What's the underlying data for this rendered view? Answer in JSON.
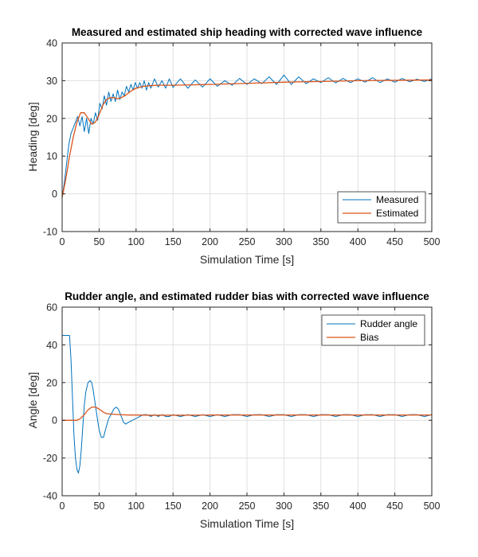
{
  "chart_data": [
    {
      "type": "line",
      "title": "Measured and estimated ship heading with corrected wave influence",
      "xlabel": "Simulation Time [s]",
      "ylabel": "Heading [deg]",
      "xlim": [
        0,
        500
      ],
      "ylim": [
        -10,
        40
      ],
      "xticks": [
        0,
        50,
        100,
        150,
        200,
        250,
        300,
        350,
        400,
        450,
        500
      ],
      "yticks": [
        -10,
        0,
        10,
        20,
        30,
        40
      ],
      "grid": true,
      "legend_position": "bottom-right",
      "series": [
        {
          "name": "Measured",
          "color": "#0072BD",
          "x": [
            0,
            3,
            6,
            9,
            12,
            15,
            18,
            21,
            24,
            27,
            30,
            33,
            36,
            39,
            42,
            45,
            48,
            51,
            54,
            57,
            60,
            63,
            66,
            69,
            72,
            75,
            78,
            81,
            84,
            87,
            90,
            93,
            96,
            99,
            102,
            105,
            108,
            111,
            114,
            117,
            120,
            125,
            130,
            135,
            140,
            145,
            150,
            160,
            170,
            180,
            190,
            200,
            210,
            220,
            230,
            240,
            250,
            260,
            270,
            280,
            290,
            300,
            310,
            320,
            330,
            340,
            350,
            360,
            370,
            380,
            390,
            400,
            410,
            420,
            430,
            440,
            450,
            460,
            470,
            480,
            490,
            500
          ],
          "values": [
            -1,
            3,
            8,
            13,
            16,
            17.5,
            19,
            20.5,
            18,
            20.5,
            16.5,
            20,
            16,
            20,
            18.5,
            21.5,
            19.5,
            24,
            22.5,
            26,
            23.5,
            27,
            24.5,
            26.5,
            24.5,
            27.5,
            25,
            27,
            26,
            28.5,
            27,
            29,
            27.5,
            29.5,
            28,
            29.5,
            28,
            30,
            27.5,
            29.5,
            28,
            30.5,
            28.3,
            30,
            28,
            30.5,
            28.2,
            30.5,
            28,
            30.2,
            28.3,
            30.5,
            28.5,
            30,
            28.8,
            30.6,
            29,
            30.5,
            29.2,
            31,
            29,
            31.5,
            29,
            31,
            29.2,
            30.5,
            29.5,
            30.8,
            29.4,
            30.6,
            29.5,
            30.5,
            29.6,
            30.8,
            29.5,
            30.5,
            29.6,
            30.6,
            29.7,
            30.4,
            29.8,
            30.5
          ]
        },
        {
          "name": "Estimated",
          "color": "#D95319",
          "x": [
            0,
            5,
            10,
            15,
            20,
            25,
            30,
            35,
            40,
            45,
            50,
            55,
            60,
            65,
            70,
            75,
            80,
            85,
            90,
            95,
            100,
            110,
            120,
            130,
            140,
            150,
            175,
            200,
            250,
            300,
            350,
            400,
            450,
            500
          ],
          "values": [
            -1,
            4,
            10,
            15,
            19,
            21.5,
            21.5,
            20,
            18.5,
            19,
            21,
            23.5,
            25,
            25.5,
            25.5,
            25.2,
            25.5,
            26,
            26.8,
            27.5,
            28,
            28.5,
            28.7,
            28.8,
            28.8,
            28.8,
            28.9,
            29,
            29.3,
            29.6,
            29.8,
            30,
            30.1,
            30.2
          ]
        }
      ]
    },
    {
      "type": "line",
      "title": "Rudder angle, and estimated rudder bias with corrected wave influence",
      "xlabel": "Simulation Time [s]",
      "ylabel": "Angle [deg]",
      "xlim": [
        0,
        500
      ],
      "ylim": [
        -40,
        60
      ],
      "xticks": [
        0,
        50,
        100,
        150,
        200,
        250,
        300,
        350,
        400,
        450,
        500
      ],
      "yticks": [
        -40,
        -20,
        0,
        20,
        40,
        60
      ],
      "grid": true,
      "legend_position": "top-right",
      "series": [
        {
          "name": "Rudder angle",
          "color": "#0072BD",
          "x": [
            0,
            5,
            10,
            12,
            14,
            16,
            18,
            20,
            22,
            24,
            26,
            28,
            30,
            32,
            35,
            38,
            40,
            42,
            45,
            48,
            50,
            53,
            56,
            60,
            63,
            66,
            70,
            73,
            76,
            80,
            83,
            86,
            90,
            95,
            100,
            105,
            110,
            115,
            120,
            125,
            130,
            135,
            140,
            145,
            150,
            160,
            170,
            180,
            190,
            200,
            210,
            220,
            230,
            240,
            250,
            260,
            270,
            280,
            290,
            300,
            310,
            320,
            330,
            340,
            350,
            360,
            370,
            380,
            390,
            400,
            410,
            420,
            430,
            440,
            450,
            460,
            470,
            480,
            490,
            500
          ],
          "values": [
            45,
            45,
            45,
            32,
            12,
            -8,
            -20,
            -26,
            -28,
            -24,
            -15,
            -3,
            8,
            15,
            20,
            21,
            20,
            16,
            8,
            0,
            -5,
            -9,
            -9,
            -3,
            1,
            3,
            6,
            7,
            6,
            2,
            -1,
            -2,
            -1,
            0,
            1,
            2,
            3,
            3,
            2,
            3,
            2,
            3,
            2,
            2,
            3,
            2,
            3,
            2,
            3,
            2,
            3,
            2,
            3,
            3,
            2,
            3,
            3,
            2,
            3,
            3,
            2,
            3,
            3,
            2,
            3,
            3,
            2,
            3,
            3,
            2,
            3,
            3,
            2,
            3,
            3,
            2,
            3,
            3,
            2,
            3
          ]
        },
        {
          "name": "Bias",
          "color": "#D95319",
          "x": [
            0,
            10,
            15,
            20,
            25,
            30,
            35,
            40,
            45,
            50,
            55,
            60,
            70,
            80,
            90,
            100,
            120,
            150,
            200,
            300,
            400,
            500
          ],
          "values": [
            0,
            0,
            0,
            0,
            1,
            3,
            5.5,
            7,
            7,
            6,
            4.5,
            3.5,
            3.2,
            3,
            2.8,
            2.8,
            2.7,
            2.7,
            2.8,
            2.8,
            2.8,
            2.8
          ]
        }
      ]
    }
  ]
}
